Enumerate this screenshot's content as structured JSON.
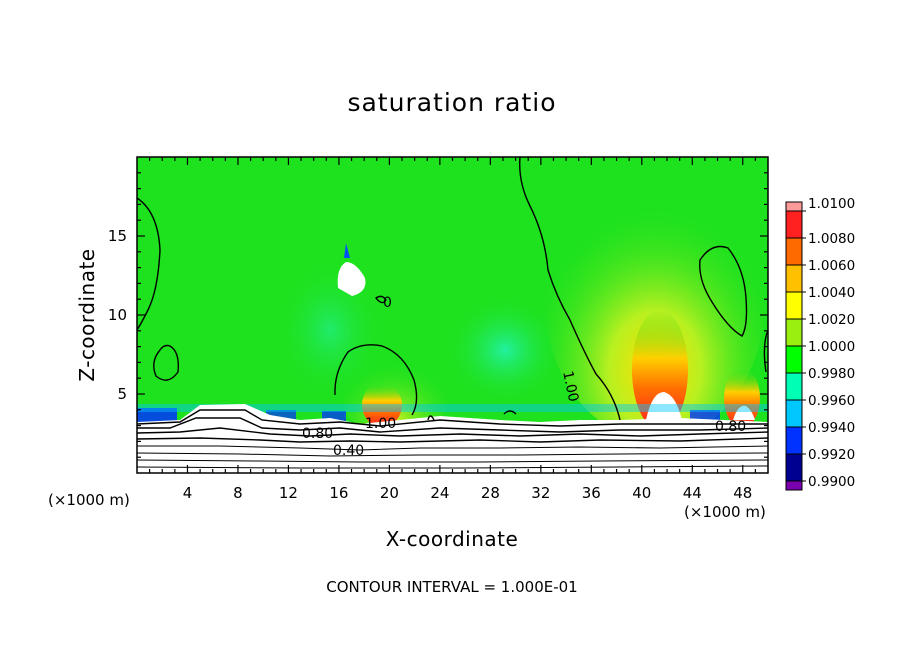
{
  "chart_data": {
    "type": "heatmap",
    "title": "saturation ratio",
    "xlabel": "X-coordinate",
    "ylabel": "Z-coordinate",
    "x_unit": "(×1000 m)",
    "xlim": [
      0,
      50
    ],
    "ylim": [
      0,
      20
    ],
    "x_ticks": [
      "4",
      "8",
      "12",
      "16",
      "20",
      "24",
      "28",
      "32",
      "36",
      "40",
      "44",
      "48"
    ],
    "y_ticks": [
      "5",
      "10",
      "15"
    ],
    "contour_interval_text": "CONTOUR INTERVAL = 1.000E-01",
    "colorbar": {
      "levels": [
        "1.0100",
        "1.0080",
        "1.0060",
        "1.0040",
        "1.0020",
        "1.0000",
        "0.9980",
        "0.9960",
        "0.9940",
        "0.9920",
        "0.9900"
      ],
      "colors": [
        "#ff9a9a",
        "#ff2020",
        "#ff6a00",
        "#ffc000",
        "#ffff00",
        "#9aef10",
        "#00ff00",
        "#00ffb4",
        "#00c8ff",
        "#0032ff",
        "#000090",
        "#7a00b0"
      ]
    },
    "contour_labels": [
      "0",
      "1.00",
      "1.00",
      "0.80",
      "0.80",
      "0.40"
    ]
  },
  "colors": {
    "field_background": "#1ee21e",
    "dry_layer": "#ffffff"
  }
}
